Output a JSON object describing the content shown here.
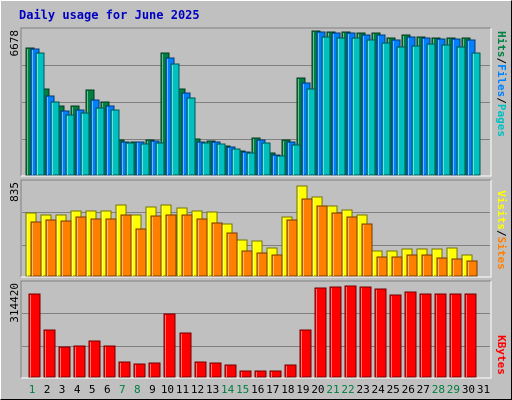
{
  "title": "Daily usage for June 2025",
  "colors": {
    "background": "#c0c0c0",
    "title": "#0000c0",
    "hits": "#008040",
    "files": "#0080ff",
    "pages": "#00c0c0",
    "visits": "#ffff00",
    "sites": "#ff8000",
    "kbytes": "#ff0000",
    "weekend_day": "#008040",
    "weekday": "#000000"
  },
  "chart_data": [
    {
      "type": "bar",
      "panel": "hits-files-pages",
      "ymax_label": "6678",
      "ylim": [
        0,
        6678
      ],
      "legend": {
        "pages": "Pages",
        "sep1": "/",
        "files": "Files",
        "sep2": "/",
        "hits": "Hits"
      },
      "categories": [
        "1",
        "2",
        "3",
        "4",
        "5",
        "6",
        "7",
        "8",
        "9",
        "10",
        "11",
        "12",
        "13",
        "14",
        "15",
        "16",
        "17",
        "18",
        "19",
        "20",
        "21",
        "22",
        "23",
        "24",
        "25",
        "26",
        "27",
        "28",
        "29",
        "30",
        "31"
      ],
      "series": [
        {
          "name": "Hits",
          "values": [
            5860,
            3980,
            3160,
            3180,
            3900,
            3340,
            1630,
            1530,
            1630,
            5640,
            3960,
            1680,
            1560,
            1320,
            1100,
            1690,
            1010,
            1620,
            4470,
            6650,
            6600,
            6600,
            6530,
            6540,
            6300,
            6460,
            6370,
            6320,
            6300,
            6290,
            0
          ]
        },
        {
          "name": "Files",
          "values": [
            5780,
            3620,
            2950,
            3010,
            3440,
            3200,
            1530,
            1500,
            1560,
            5400,
            3760,
            1530,
            1500,
            1270,
            1060,
            1600,
            940,
            1530,
            4230,
            6590,
            6560,
            6560,
            6460,
            6450,
            6210,
            6370,
            6330,
            6280,
            6250,
            6210,
            0
          ]
        },
        {
          "name": "Pages",
          "values": [
            5640,
            3380,
            2760,
            2860,
            3090,
            2990,
            1470,
            1440,
            1470,
            5120,
            3540,
            1470,
            1410,
            1210,
            1010,
            1470,
            890,
            1370,
            3950,
            6360,
            6300,
            6300,
            6220,
            6090,
            5890,
            5940,
            6020,
            5980,
            5880,
            5630,
            0
          ]
        }
      ]
    },
    {
      "type": "bar",
      "panel": "visits-sites",
      "ymax_label": "835",
      "ylim": [
        0,
        835
      ],
      "legend": {
        "sites": "Sites",
        "sep": "/",
        "visits": "Visits"
      },
      "categories": [
        "1",
        "2",
        "3",
        "4",
        "5",
        "6",
        "7",
        "8",
        "9",
        "10",
        "11",
        "12",
        "13",
        "14",
        "15",
        "16",
        "17",
        "18",
        "19",
        "20",
        "21",
        "22",
        "23",
        "24",
        "25",
        "26",
        "27",
        "28",
        "29",
        "30",
        "31"
      ],
      "series": [
        {
          "name": "Visits",
          "values": [
            560,
            540,
            540,
            580,
            580,
            580,
            630,
            540,
            610,
            630,
            600,
            580,
            570,
            460,
            320,
            310,
            250,
            520,
            800,
            700,
            620,
            590,
            540,
            220,
            220,
            240,
            240,
            240,
            250,
            190,
            0
          ]
        },
        {
          "name": "Sites",
          "values": [
            480,
            500,
            490,
            520,
            510,
            510,
            540,
            420,
            530,
            540,
            540,
            510,
            470,
            380,
            220,
            200,
            190,
            500,
            680,
            620,
            560,
            520,
            460,
            170,
            170,
            190,
            190,
            160,
            150,
            130,
            0
          ]
        }
      ]
    },
    {
      "type": "bar",
      "panel": "kbytes",
      "ymax_label": "314420",
      "ylim": [
        0,
        314420
      ],
      "legend": {
        "kbytes": "KBytes"
      },
      "categories": [
        "1",
        "2",
        "3",
        "4",
        "5",
        "6",
        "7",
        "8",
        "9",
        "10",
        "11",
        "12",
        "13",
        "14",
        "15",
        "16",
        "17",
        "18",
        "19",
        "20",
        "21",
        "22",
        "23",
        "24",
        "25",
        "26",
        "27",
        "28",
        "29",
        "30",
        "31"
      ],
      "series": [
        {
          "name": "KBytes",
          "values": [
            276000,
            157000,
            100000,
            105000,
            119000,
            105000,
            50000,
            43000,
            46000,
            211000,
            146000,
            50000,
            46000,
            40000,
            20000,
            20000,
            20000,
            40000,
            158000,
            298000,
            301000,
            303000,
            300000,
            294000,
            274000,
            283000,
            279000,
            277000,
            276000,
            278000,
            0
          ]
        }
      ]
    }
  ],
  "x_axis": {
    "labels": [
      "1",
      "2",
      "3",
      "4",
      "5",
      "6",
      "7",
      "8",
      "9",
      "10",
      "11",
      "12",
      "13",
      "14",
      "15",
      "16",
      "17",
      "18",
      "19",
      "20",
      "21",
      "22",
      "23",
      "24",
      "25",
      "26",
      "27",
      "28",
      "29",
      "30",
      "31"
    ],
    "weekend": [
      1,
      7,
      8,
      14,
      15,
      21,
      22,
      28,
      29
    ]
  }
}
